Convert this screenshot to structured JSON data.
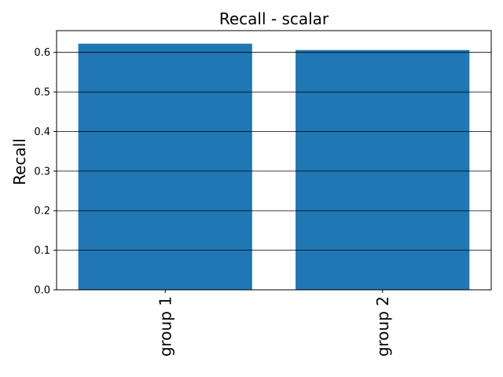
{
  "chart_data": {
    "type": "bar",
    "title": "Recall - scalar",
    "xlabel": "",
    "ylabel": "Recall",
    "categories": [
      "group 1",
      "group 2"
    ],
    "values": [
      0.622,
      0.606
    ],
    "ylim": [
      0,
      0.655
    ],
    "yticks": [
      "0.0",
      "0.1",
      "0.2",
      "0.3",
      "0.4",
      "0.5",
      "0.6"
    ],
    "grid": "horizontal",
    "legend": "none",
    "bar_color": "#1f77b4",
    "grid_color": "#000000"
  }
}
